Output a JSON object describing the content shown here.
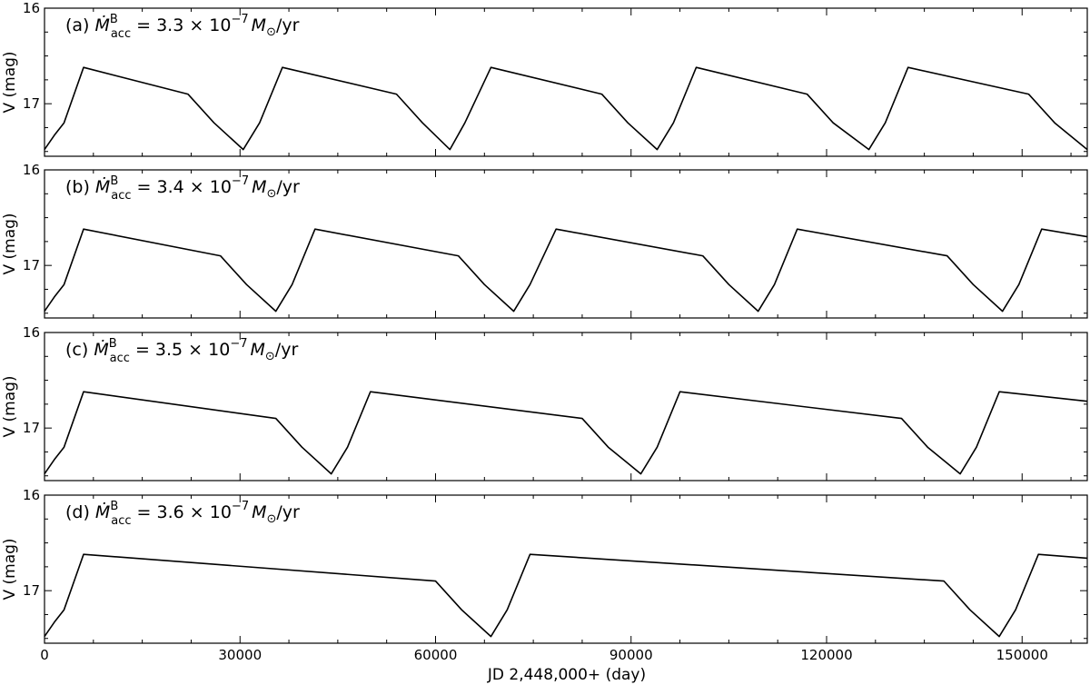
{
  "chart_data": {
    "type": "line",
    "xlabel": "JD 2,448,000+ (day)",
    "ylabel": "V  (mag)",
    "xlim": [
      0,
      160000
    ],
    "ylim": [
      17.55,
      16.0
    ],
    "y_inverted": true,
    "x_ticks": [
      0,
      30000,
      60000,
      90000,
      120000,
      150000
    ],
    "x_tick_labels": [
      "0",
      "30000",
      "60000",
      "90000",
      "120000",
      "150000"
    ],
    "y_ticks": [
      16,
      17
    ],
    "y_tick_labels": [
      "16",
      "17"
    ],
    "grid": false,
    "line_color": "#000000",
    "panels": [
      {
        "id": "a",
        "label_prefix": "(a)",
        "label_value": "3.3",
        "label_suffix": "/yr",
        "x": [
          0,
          1500,
          3000,
          6000,
          22000,
          26000,
          30500,
          33000,
          36500,
          54000,
          58000,
          62200,
          64500,
          68500,
          85500,
          89500,
          94000,
          96500,
          100000,
          117000,
          121000,
          126500,
          129000,
          132500,
          151000,
          155000,
          160000
        ],
        "y": [
          17.48,
          17.33,
          17.2,
          16.62,
          16.9,
          17.2,
          17.48,
          17.2,
          16.62,
          16.9,
          17.2,
          17.48,
          17.2,
          16.62,
          16.9,
          17.2,
          17.48,
          17.2,
          16.62,
          16.9,
          17.2,
          17.48,
          17.2,
          16.62,
          16.9,
          17.2,
          17.48
        ]
      },
      {
        "id": "b",
        "label_prefix": "(b)",
        "label_value": "3.4",
        "label_suffix": "/yr",
        "x": [
          0,
          1500,
          3000,
          6000,
          27000,
          31000,
          35500,
          38000,
          41500,
          63500,
          67500,
          72000,
          74500,
          78500,
          101000,
          105000,
          109500,
          112000,
          115500,
          138500,
          142500,
          147000,
          149500,
          153000,
          160000
        ],
        "y": [
          17.48,
          17.33,
          17.2,
          16.62,
          16.9,
          17.2,
          17.48,
          17.2,
          16.62,
          16.9,
          17.2,
          17.48,
          17.2,
          16.62,
          16.9,
          17.2,
          17.48,
          17.2,
          16.62,
          16.9,
          17.2,
          17.48,
          17.2,
          16.62,
          16.7
        ]
      },
      {
        "id": "c",
        "label_prefix": "(c)",
        "label_value": "3.5",
        "label_suffix": "/yr",
        "x": [
          0,
          1500,
          3000,
          6000,
          35500,
          39500,
          44000,
          46500,
          50000,
          82500,
          86500,
          91500,
          94000,
          97500,
          131500,
          135500,
          140500,
          143000,
          146500,
          160000
        ],
        "y": [
          17.48,
          17.33,
          17.2,
          16.62,
          16.9,
          17.2,
          17.48,
          17.2,
          16.62,
          16.9,
          17.2,
          17.48,
          17.2,
          16.62,
          16.9,
          17.2,
          17.48,
          17.2,
          16.62,
          16.72
        ]
      },
      {
        "id": "d",
        "label_prefix": "(d)",
        "label_value": "3.6",
        "label_suffix": "/yr",
        "x": [
          0,
          1500,
          3000,
          6000,
          60000,
          64000,
          68500,
          71000,
          74500,
          138000,
          142000,
          146500,
          149000,
          152500,
          160000
        ],
        "y": [
          17.48,
          17.33,
          17.2,
          16.62,
          16.9,
          17.2,
          17.48,
          17.2,
          16.62,
          16.9,
          17.2,
          17.48,
          17.2,
          16.62,
          16.66
        ]
      }
    ]
  }
}
